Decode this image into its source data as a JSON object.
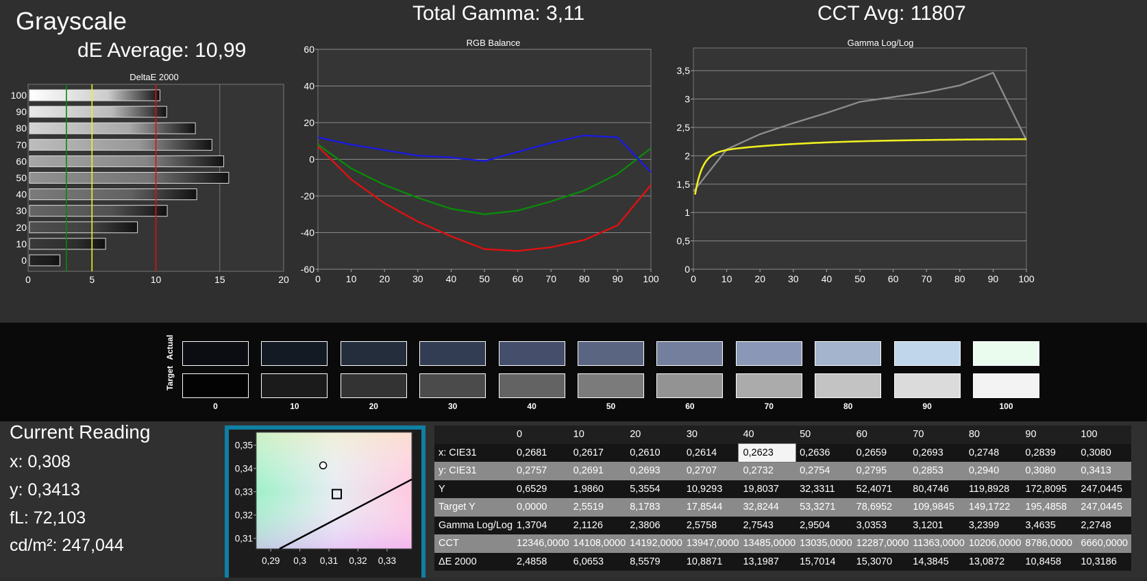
{
  "header": {
    "title": "Grayscale",
    "de_average": "dE Average: 10,99",
    "total_gamma": "Total Gamma: 3,11",
    "cct_avg": "CCT Avg: 11807"
  },
  "colors": {
    "red": "#e01010",
    "green": "#0a8a0a",
    "blue": "#1a1ae0",
    "yellow": "#f0f020",
    "gray_line": "#8c8c8c",
    "accent": "#0f7fa3"
  },
  "chart_data": [
    {
      "type": "bar",
      "title": "DeltaE 2000",
      "orientation": "horizontal",
      "categories": [
        "100",
        "90",
        "80",
        "70",
        "60",
        "50",
        "40",
        "30",
        "20",
        "10",
        "0"
      ],
      "values": [
        10.3186,
        10.8458,
        13.0872,
        14.3845,
        15.307,
        15.7014,
        13.1987,
        10.8871,
        8.5579,
        6.0653,
        2.4858
      ],
      "xlim": [
        0,
        20
      ],
      "xticks": [
        "0",
        "5",
        "10",
        "15",
        "20"
      ],
      "reference_lines": [
        {
          "value": 3,
          "color": "#0a8a0a"
        },
        {
          "value": 5,
          "color": "#f0f020"
        },
        {
          "value": 10,
          "color": "#e01010"
        }
      ],
      "grid": true
    },
    {
      "type": "line",
      "title": "RGB Balance",
      "x": [
        0,
        10,
        20,
        30,
        40,
        50,
        60,
        70,
        80,
        90,
        100
      ],
      "series": [
        {
          "color": "#e01010",
          "values": [
            7,
            -11,
            -24,
            -34,
            -42,
            -49,
            -50,
            -48,
            -44,
            -36,
            -14
          ]
        },
        {
          "color": "#0a8a0a",
          "values": [
            8,
            -5,
            -14,
            -21,
            -27,
            -30,
            -28,
            -23,
            -17,
            -8,
            6
          ]
        },
        {
          "color": "#1a1ae0",
          "values": [
            12,
            8,
            5,
            2,
            1,
            -1,
            4,
            9,
            13,
            12,
            -7
          ]
        }
      ],
      "xlim": [
        0,
        100
      ],
      "ylim": [
        -60,
        60
      ],
      "xticks": [
        "0",
        "10",
        "20",
        "30",
        "40",
        "50",
        "60",
        "70",
        "80",
        "90",
        "100"
      ],
      "yticks": [
        "60",
        "40",
        "20",
        "0",
        "-20",
        "-40",
        "-60"
      ],
      "grid": true
    },
    {
      "type": "line",
      "title": "Gamma Log/Log",
      "x": [
        0,
        10,
        20,
        30,
        40,
        50,
        60,
        70,
        80,
        90,
        100
      ],
      "series": [
        {
          "color": "#8c8c8c",
          "values": [
            1.3704,
            2.1126,
            2.3806,
            2.5758,
            2.7543,
            2.9504,
            3.0353,
            3.1201,
            3.2399,
            3.4635,
            2.2748
          ]
        },
        {
          "color": "#f0f020",
          "curve": "target",
          "gamma_target": 2.3
        }
      ],
      "xlim": [
        0,
        100
      ],
      "ylim": [
        0,
        3.9
      ],
      "xticks": [
        "0",
        "10",
        "20",
        "30",
        "40",
        "50",
        "60",
        "70",
        "80",
        "90",
        "100"
      ],
      "yticks": [
        "3,5",
        "3",
        "2,5",
        "2",
        "1,5",
        "1",
        "0,5",
        "0"
      ],
      "grid": true
    },
    {
      "type": "scatter",
      "x_ticks": [
        "0,29",
        "0,3",
        "0,31",
        "0,32",
        "0,33"
      ],
      "y_ticks": [
        "0,35",
        "0,34",
        "0,33",
        "0,32",
        "0,31"
      ],
      "xlim": [
        0.285,
        0.3385
      ],
      "ylim": [
        0.3055,
        0.3555
      ],
      "points": [
        {
          "shape": "circle",
          "x": 0.308,
          "y": 0.3413
        },
        {
          "shape": "square",
          "x": 0.3127,
          "y": 0.329
        }
      ],
      "locus": [
        [
          0.293,
          0.3055
        ],
        [
          0.3385,
          0.3353
        ]
      ]
    }
  ],
  "swatches": {
    "actual_label": "Actual",
    "target_label": "Target",
    "labels": [
      "0",
      "10",
      "20",
      "30",
      "40",
      "50",
      "60",
      "70",
      "80",
      "90",
      "100"
    ],
    "actual_colors": [
      "#0b0d12",
      "#141a24",
      "#242d3c",
      "#323c52",
      "#454f6c",
      "#5a6582",
      "#737f9c",
      "#8b97b6",
      "#a4b4cd",
      "#c0d6ea",
      "#eafcee"
    ],
    "target_colors": [
      "#030303",
      "#1b1b1b",
      "#333333",
      "#4b4b4b",
      "#636363",
      "#7b7b7b",
      "#939393",
      "#ababab",
      "#c3c3c3",
      "#dbdbdb",
      "#f3f3f3"
    ]
  },
  "current_reading": {
    "title": "Current Reading",
    "x": "x: 0,308",
    "y": "y: 0,3413",
    "fl": "fL: 72,103",
    "cdm2": "cd/m²: 247,044"
  },
  "table": {
    "headers": [
      "",
      "0",
      "10",
      "20",
      "30",
      "40",
      "50",
      "60",
      "70",
      "80",
      "90",
      "100"
    ],
    "highlight": {
      "row": 0,
      "col": 5
    },
    "rows": [
      [
        "x: CIE31",
        "0,2681",
        "0,2617",
        "0,2610",
        "0,2614",
        "0,2623",
        "0,2636",
        "0,2659",
        "0,2693",
        "0,2748",
        "0,2839",
        "0,3080"
      ],
      [
        "y: CIE31",
        "0,2757",
        "0,2691",
        "0,2693",
        "0,2707",
        "0,2732",
        "0,2754",
        "0,2795",
        "0,2853",
        "0,2940",
        "0,3080",
        "0,3413"
      ],
      [
        "Y",
        "0,6529",
        "1,9860",
        "5,3554",
        "10,9293",
        "19,8037",
        "32,3311",
        "52,4071",
        "80,4746",
        "119,8928",
        "172,8095",
        "247,0445"
      ],
      [
        "Target Y",
        "0,0000",
        "2,5519",
        "8,1783",
        "17,8544",
        "32,8244",
        "53,3271",
        "78,6952",
        "109,9845",
        "149,1722",
        "195,4858",
        "247,0445"
      ],
      [
        "Gamma Log/Log",
        "1,3704",
        "2,1126",
        "2,3806",
        "2,5758",
        "2,7543",
        "2,9504",
        "3,0353",
        "3,1201",
        "3,2399",
        "3,4635",
        "2,2748"
      ],
      [
        "CCT",
        "12346,0000",
        "14108,0000",
        "14192,0000",
        "13947,0000",
        "13485,0000",
        "13035,0000",
        "12287,0000",
        "11363,0000",
        "10206,0000",
        "8786,0000",
        "6660,0000"
      ],
      [
        "ΔE 2000",
        "2,4858",
        "6,0653",
        "8,5579",
        "10,8871",
        "13,1987",
        "15,7014",
        "15,3070",
        "14,3845",
        "13,0872",
        "10,8458",
        "10,3186"
      ]
    ]
  }
}
